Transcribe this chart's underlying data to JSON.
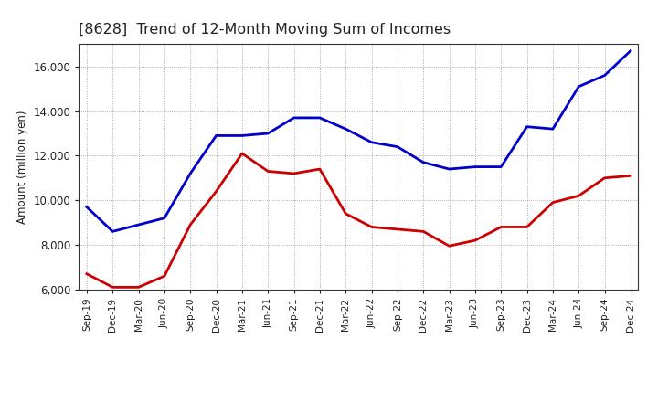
{
  "title": "[8628]  Trend of 12-Month Moving Sum of Incomes",
  "ylabel": "Amount (million yen)",
  "background_color": "#ffffff",
  "grid_color": "#999999",
  "x_labels": [
    "Sep-19",
    "Dec-19",
    "Mar-20",
    "Jun-20",
    "Sep-20",
    "Dec-20",
    "Mar-21",
    "Jun-21",
    "Sep-21",
    "Dec-21",
    "Mar-22",
    "Jun-22",
    "Sep-22",
    "Dec-22",
    "Mar-23",
    "Jun-23",
    "Sep-23",
    "Dec-23",
    "Mar-24",
    "Jun-24",
    "Sep-24",
    "Dec-24"
  ],
  "ordinary_income": [
    9700,
    8600,
    8900,
    9200,
    11200,
    12900,
    12900,
    13000,
    13700,
    13700,
    13200,
    12600,
    12400,
    11700,
    11400,
    11500,
    11500,
    13300,
    13200,
    15100,
    15600,
    16700
  ],
  "net_income": [
    6700,
    6100,
    6100,
    6600,
    8900,
    10400,
    12100,
    11300,
    11200,
    11400,
    9400,
    8800,
    8700,
    8600,
    7950,
    8200,
    8800,
    8800,
    9900,
    10200,
    11000,
    11100
  ],
  "ordinary_color": "#0000cc",
  "net_color": "#cc0000",
  "ylim_min": 6000,
  "ylim_max": 17000,
  "yticks": [
    6000,
    8000,
    10000,
    12000,
    14000,
    16000
  ],
  "line_width": 2.0
}
